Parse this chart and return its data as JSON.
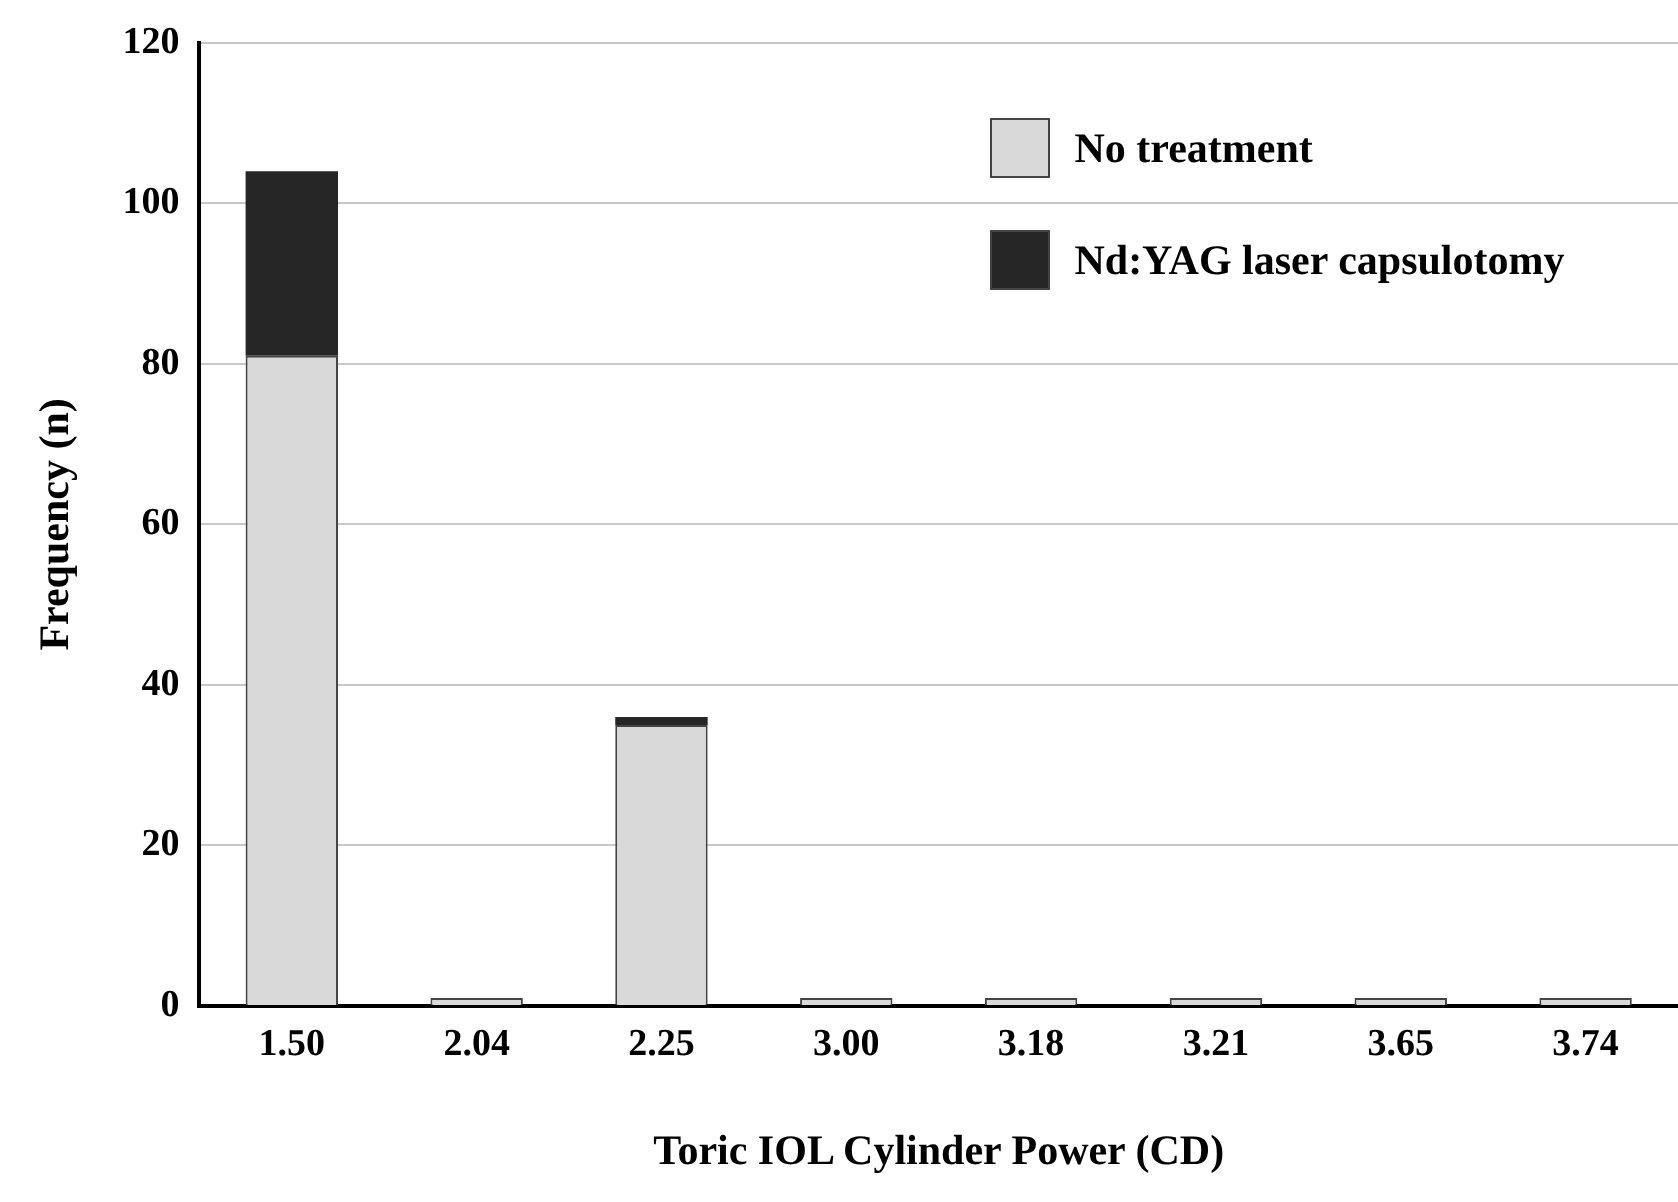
{
  "chart_data": {
    "type": "bar",
    "stacked": true,
    "xlabel": "Toric IOL Cylinder Power (CD)",
    "ylabel": "Frequency (n)",
    "categories": [
      "1.50",
      "2.04",
      "2.25",
      "3.00",
      "3.18",
      "3.21",
      "3.65",
      "3.74"
    ],
    "series": [
      {
        "name": "No treatment",
        "color": "#d9d9d9",
        "values": [
          81,
          1,
          35,
          1,
          1,
          1,
          1,
          1
        ]
      },
      {
        "name": "Nd:YAG laser capsulotomy",
        "color": "#262626",
        "values": [
          23,
          0,
          1,
          0,
          0,
          0,
          0,
          0
        ]
      }
    ],
    "ylim": [
      0,
      120
    ],
    "yticks": [
      0,
      20,
      40,
      60,
      80,
      100,
      120
    ],
    "grid": "y",
    "legend": "top right"
  }
}
